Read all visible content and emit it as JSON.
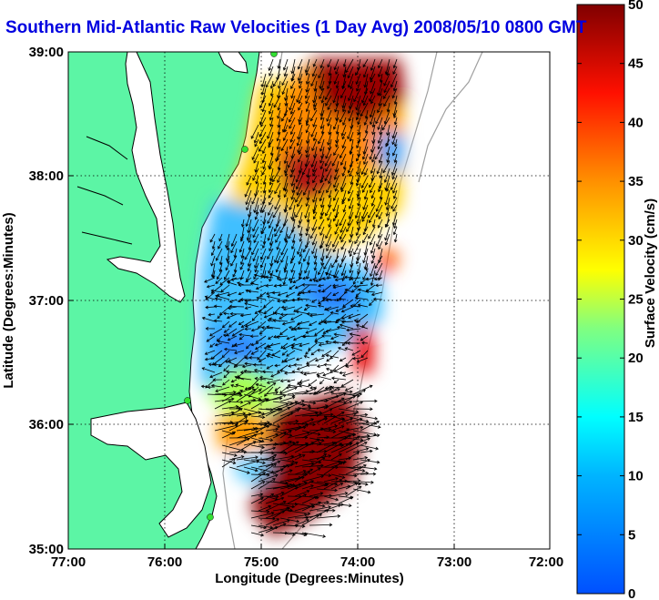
{
  "title": "Southern Mid-Atlantic Raw Velocities (1 Day Avg) 2008/05/10 0800 GMT",
  "map": {
    "xlabel": "Longitude (Degrees:Minutes)",
    "ylabel": "Latitude (Degrees:Minutes)",
    "x_ticks": [
      "77:00",
      "76:00",
      "75:00",
      "74:00",
      "73:00",
      "72:00"
    ],
    "y_ticks": [
      "39:00",
      "38:00",
      "37:00",
      "36:00",
      "35:00"
    ],
    "lon_range": [
      -77,
      -72
    ],
    "lat_range": [
      35,
      39
    ],
    "grid": true,
    "land_color": "#5cf5a5",
    "coastline_color": "#000000",
    "isobath_color": "#a0a0a0",
    "station_color": "#33e033",
    "stations": [
      {
        "lon": -74.87,
        "lat": 38.99
      },
      {
        "lon": -75.1,
        "lat": 38.22
      },
      {
        "lon": -75.72,
        "lat": 36.18
      },
      {
        "lon": -75.49,
        "lat": 35.24
      }
    ]
  },
  "colorbar": {
    "label": "Surface Velocity (cm/s)",
    "min": 0,
    "max": 50,
    "ticks": [
      "50",
      "45",
      "40",
      "35",
      "30",
      "25",
      "20",
      "15",
      "10",
      "5",
      "0"
    ],
    "colormap": "jet"
  }
}
